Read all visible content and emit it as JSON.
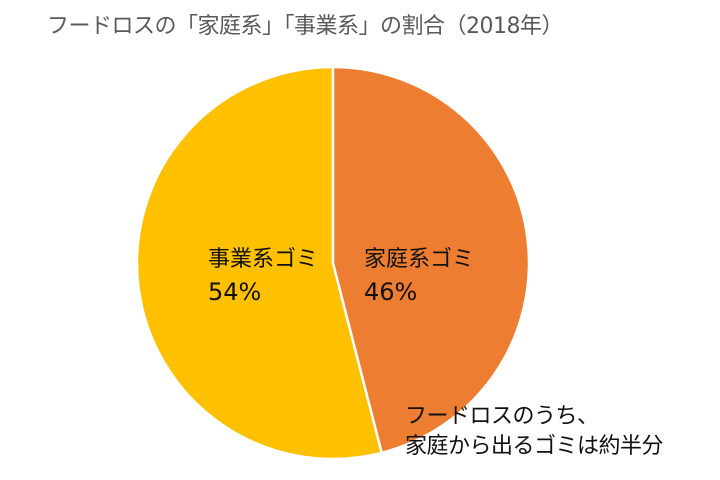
{
  "chart_data": {
    "type": "pie",
    "title": "フードロスの「家庭系」「事業系」の割合（2018年）",
    "slices": [
      {
        "label": "家庭系ゴミ",
        "value": 46,
        "display": "46%",
        "color": "#ED7D31"
      },
      {
        "label": "事業系ゴミ",
        "value": 54,
        "display": "54%",
        "color": "#FFC000"
      }
    ],
    "start_angle": "12 o'clock, clockwise",
    "annotation": [
      "フードロスのうち、",
      "家庭から出るゴミは約半分"
    ],
    "legend": "none (data labels inside slices)"
  },
  "labels": {
    "home_name": "家庭系ゴミ",
    "home_pct": "46%",
    "biz_name": "事業系ゴミ",
    "biz_pct": "54%"
  },
  "note": {
    "line1": "フードロスのうち、",
    "line2": "家庭から出るゴミは約半分"
  }
}
